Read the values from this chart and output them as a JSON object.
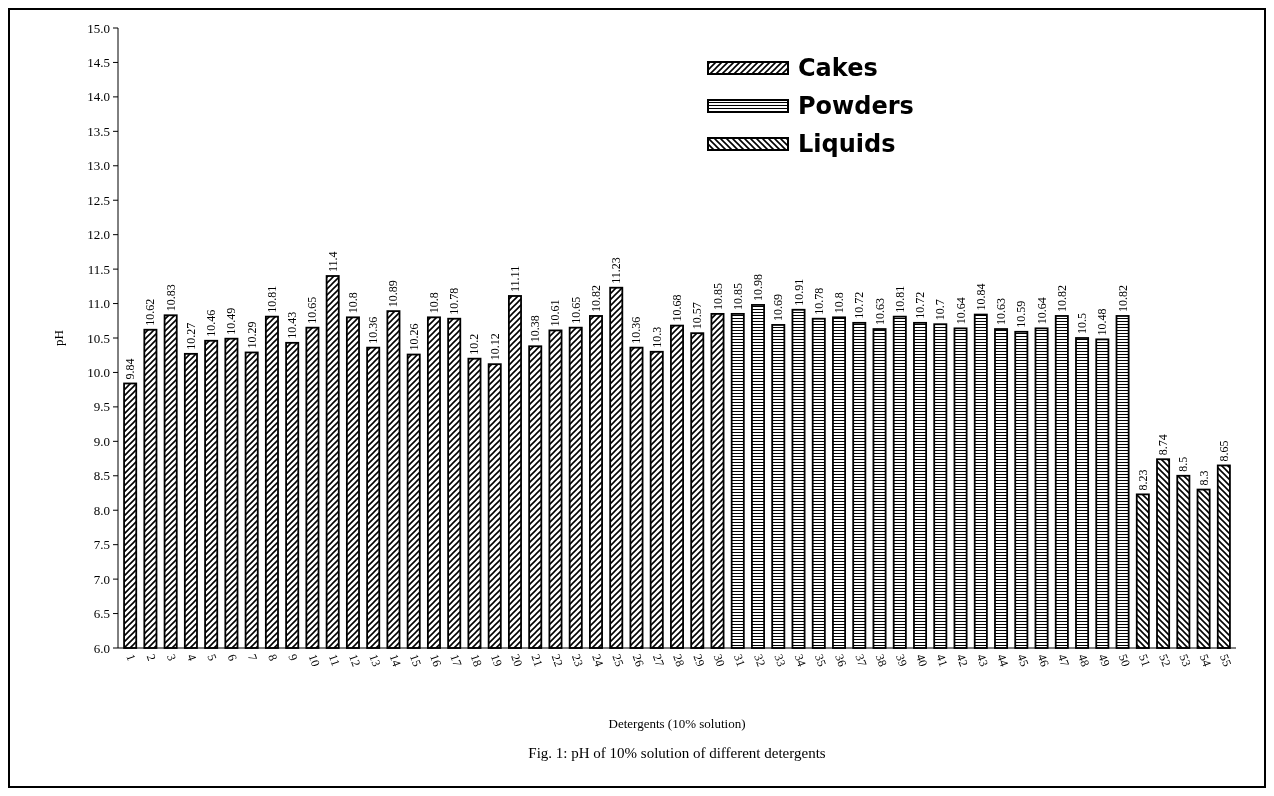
{
  "chart_data": {
    "type": "bar",
    "title": "Fig. 1:   pH of 10% solution of different detergents",
    "xlabel": "Detergents (10% solution)",
    "ylabel": "pH",
    "categories": [
      "1",
      "2",
      "3",
      "4",
      "5",
      "6",
      "7",
      "8",
      "9",
      "10",
      "11",
      "12",
      "13",
      "14",
      "15",
      "16",
      "17",
      "18",
      "19",
      "20",
      "21",
      "22",
      "23",
      "24",
      "25",
      "26",
      "27",
      "28",
      "29",
      "30",
      "31",
      "32",
      "33",
      "34",
      "35",
      "36",
      "37",
      "38",
      "39",
      "40",
      "41",
      "42",
      "43",
      "44",
      "45",
      "46",
      "47",
      "48",
      "49",
      "50",
      "51",
      "52",
      "53",
      "54",
      "55"
    ],
    "series": [
      {
        "name": "Cakes",
        "color": "#000000",
        "values": [
          9.84,
          10.62,
          10.83,
          10.27,
          10.46,
          10.49,
          10.29,
          10.81,
          10.43,
          10.65,
          11.4,
          10.8,
          10.36,
          10.89,
          10.26,
          10.8,
          10.78,
          10.2,
          10.12,
          11.11,
          10.38,
          10.61,
          10.65,
          10.82,
          11.23,
          10.36,
          10.3,
          10.68,
          10.57,
          10.85,
          null,
          null,
          null,
          null,
          null,
          null,
          null,
          null,
          null,
          null,
          null,
          null,
          null,
          null,
          null,
          null,
          null,
          null,
          null,
          null,
          null,
          null,
          null,
          null,
          null
        ]
      },
      {
        "name": "Powders",
        "color": "#000000",
        "values": [
          null,
          null,
          null,
          null,
          null,
          null,
          null,
          null,
          null,
          null,
          null,
          null,
          null,
          null,
          null,
          null,
          null,
          null,
          null,
          null,
          null,
          null,
          null,
          null,
          null,
          null,
          null,
          null,
          null,
          null,
          10.85,
          10.98,
          10.69,
          10.91,
          10.78,
          10.8,
          10.72,
          10.63,
          10.81,
          10.72,
          10.7,
          10.64,
          10.84,
          10.63,
          10.59,
          10.64,
          10.82,
          10.5,
          10.48,
          10.82,
          null,
          null,
          null,
          null,
          null
        ]
      },
      {
        "name": "Liquids",
        "color": "#000000",
        "values": [
          null,
          null,
          null,
          null,
          null,
          null,
          null,
          null,
          null,
          null,
          null,
          null,
          null,
          null,
          null,
          null,
          null,
          null,
          null,
          null,
          null,
          null,
          null,
          null,
          null,
          null,
          null,
          null,
          null,
          null,
          null,
          null,
          null,
          null,
          null,
          null,
          null,
          null,
          null,
          null,
          null,
          null,
          null,
          null,
          null,
          null,
          null,
          null,
          null,
          null,
          8.23,
          8.74,
          8.5,
          8.3,
          8.65
        ]
      }
    ],
    "ylim": [
      6,
      15
    ],
    "yticks": [
      {
        "value": 6,
        "label": "6.0"
      },
      {
        "value": 6.5,
        "label": "6.5"
      },
      {
        "value": 7,
        "label": "7.0"
      },
      {
        "value": 7.5,
        "label": "7.5"
      },
      {
        "value": 8,
        "label": "8.0"
      },
      {
        "value": 8.5,
        "label": "8.5"
      },
      {
        "value": 9,
        "label": "9.0"
      },
      {
        "value": 9.5,
        "label": "9.5"
      },
      {
        "value": 10,
        "label": "10.0"
      },
      {
        "value": 10.5,
        "label": "10.5"
      },
      {
        "value": 11,
        "label": "11.0"
      },
      {
        "value": 11.5,
        "label": "11.5"
      },
      {
        "value": 12,
        "label": "12.0"
      },
      {
        "value": 12.5,
        "label": "12.5"
      },
      {
        "value": 13,
        "label": "13.0"
      },
      {
        "value": 13.5,
        "label": "13.5"
      },
      {
        "value": 14,
        "label": "14.0"
      },
      {
        "value": 14.5,
        "label": "14.5"
      },
      {
        "value": 15,
        "label": "15.0"
      }
    ],
    "data_labels": true,
    "legend": "top",
    "grid": false
  }
}
